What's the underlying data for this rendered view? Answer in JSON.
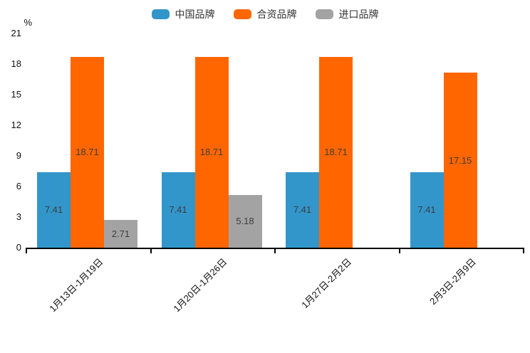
{
  "chart_data": {
    "type": "bar",
    "title": "",
    "ylabel": "%",
    "xlabel": "",
    "categories": [
      "1月13日-1月19日",
      "1月20日-1月26日",
      "1月27日-2月2日",
      "2月3日-2月9日"
    ],
    "series": [
      {
        "name": "中国品牌",
        "color": "#3296cb",
        "values": [
          7.41,
          7.41,
          7.41,
          7.41
        ]
      },
      {
        "name": "合资品牌",
        "color": "#ff6600",
        "values": [
          18.71,
          18.71,
          18.71,
          17.15
        ]
      },
      {
        "name": "进口品牌",
        "color": "#a3a3a3",
        "values": [
          2.71,
          5.18,
          null,
          null
        ]
      }
    ],
    "data_labels": [
      "7.41",
      "18.71",
      "2.71",
      "5.18",
      "17.15"
    ],
    "ylim": [
      0,
      21
    ],
    "yticks": [
      0,
      3,
      6,
      9,
      12,
      15,
      18,
      21
    ],
    "legend_position": "top-center",
    "grid": false,
    "bar_label_color": "#3d3d3d",
    "axis_color": "#000000",
    "background_color": "#ffffff"
  }
}
